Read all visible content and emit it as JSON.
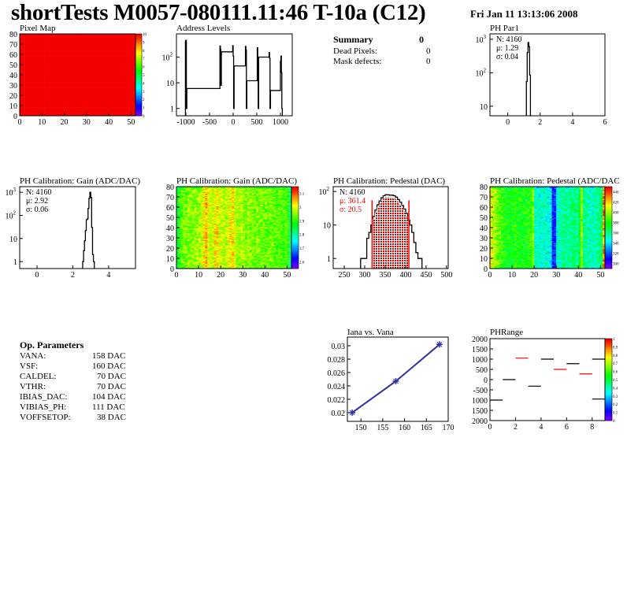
{
  "header": {
    "title": "shortTests M0057-080111.11:46 T-10a (C12)",
    "date": "Fri Jan 11 13:13:06 2008"
  },
  "summary": {
    "title": "Summary",
    "total": "0",
    "rows": [
      {
        "label": "Dead Pixels:",
        "value": "0"
      },
      {
        "label": "Mask defects:",
        "value": "0"
      }
    ]
  },
  "op_parameters": {
    "title": "Op. Parameters",
    "rows": [
      {
        "label": "VANA:",
        "value": "158 DAC"
      },
      {
        "label": "VSF:",
        "value": "160 DAC"
      },
      {
        "label": "CALDEL:",
        "value": "70 DAC"
      },
      {
        "label": "VTHR:",
        "value": "70 DAC"
      },
      {
        "label": "IBIAS_DAC:",
        "value": "104 DAC"
      },
      {
        "label": "VIBIAS_PH:",
        "value": "111 DAC"
      },
      {
        "label": "VOFFSETOP:",
        "value": "38 DAC"
      }
    ]
  },
  "chart_data": [
    {
      "id": "pixel_map",
      "type": "heatmap",
      "title": "Pixel Map",
      "xlim": [
        0,
        52
      ],
      "ylim": [
        0,
        80
      ],
      "zlim": [
        0,
        10
      ],
      "xticks": [
        "0",
        "10",
        "20",
        "30",
        "40",
        "50"
      ],
      "yticks": [
        "0",
        "10",
        "20",
        "30",
        "40",
        "50",
        "60",
        "70",
        "80"
      ],
      "zticks": [
        "0",
        "1",
        "2",
        "3",
        "4",
        "5",
        "6",
        "7",
        "8",
        "9",
        "10"
      ],
      "uniform_value": 10
    },
    {
      "id": "address_levels",
      "type": "bar",
      "title": "Address Levels",
      "xlim": [
        -1200,
        1250
      ],
      "ylim": [
        0.52,
        800
      ],
      "log_y": true,
      "xticks": [
        "-1000",
        "-500",
        "0",
        "500",
        "1000"
      ],
      "yticks": [
        "1",
        "10",
        "10²"
      ],
      "bin_width": 10,
      "bins": [
        [
          -1010,
          420
        ],
        [
          -1000,
          450
        ],
        [
          -990,
          1
        ],
        [
          -290,
          6
        ],
        [
          -280,
          270
        ],
        [
          -270,
          200
        ],
        [
          -260,
          8
        ],
        [
          -20,
          160
        ],
        [
          -10,
          280
        ],
        [
          0,
          110
        ],
        [
          10,
          1
        ],
        [
          250,
          45
        ],
        [
          260,
          260
        ],
        [
          270,
          190
        ],
        [
          280,
          1
        ],
        [
          500,
          12
        ],
        [
          510,
          230
        ],
        [
          520,
          90
        ],
        [
          530,
          1
        ],
        [
          750,
          100
        ],
        [
          760,
          150
        ],
        [
          770,
          90
        ],
        [
          780,
          1
        ],
        [
          990,
          5
        ],
        [
          1000,
          70
        ],
        [
          1010,
          110
        ],
        [
          1020,
          25
        ],
        [
          1030,
          1
        ]
      ]
    },
    {
      "id": "ph_par1",
      "type": "bar",
      "title": "PH Par1",
      "xlim": [
        -1.1,
        6
      ],
      "ylim": [
        5.2,
        1450
      ],
      "log_y": true,
      "xticks": [
        "0",
        "2",
        "4",
        "6"
      ],
      "yticks": [
        "10",
        "10²",
        "10³"
      ],
      "stats": {
        "n": "N: 4160",
        "mean": "μ: 1.29",
        "sigma": "σ: 0.04"
      },
      "bin_width": 0.05,
      "bins": [
        [
          1.15,
          55
        ],
        [
          1.2,
          400
        ],
        [
          1.25,
          800
        ],
        [
          1.3,
          600
        ],
        [
          1.35,
          85
        ],
        [
          1.4,
          5
        ]
      ]
    },
    {
      "id": "gain_hist",
      "type": "bar",
      "title": "PH Calibration: Gain (ADC/DAC)",
      "xlim": [
        -0.97,
        5.5
      ],
      "ylim": [
        0.5,
        1750
      ],
      "log_y": true,
      "xticks": [
        "0",
        "2",
        "4"
      ],
      "yticks": [
        "1",
        "10",
        "10²",
        "10³"
      ],
      "stats": {
        "n": "N: 4160",
        "mean": "μ: 2.92",
        "sigma": "σ: 0.06"
      },
      "bin_width": 0.05,
      "bins": [
        [
          2.55,
          1
        ],
        [
          2.6,
          3
        ],
        [
          2.65,
          8
        ],
        [
          2.7,
          22
        ],
        [
          2.75,
          65
        ],
        [
          2.8,
          70
        ],
        [
          2.85,
          200
        ],
        [
          2.9,
          550
        ],
        [
          2.95,
          1000
        ],
        [
          3.0,
          600
        ],
        [
          3.05,
          30
        ],
        [
          3.1,
          2
        ],
        [
          3.15,
          1
        ]
      ]
    },
    {
      "id": "gain_map",
      "type": "heatmap",
      "title": "PH Calibration: Gain (ADC/DAC)",
      "xlim": [
        0,
        52
      ],
      "ylim": [
        0,
        80
      ],
      "zlim": [
        2.55,
        3.15
      ],
      "xticks": [
        "0",
        "10",
        "20",
        "30",
        "40",
        "50"
      ],
      "yticks": [
        "0",
        "10",
        "20",
        "30",
        "40",
        "50",
        "60",
        "70",
        "80"
      ],
      "zticks": [
        "2.6",
        "2.7",
        "2.8",
        "2.9",
        "3",
        "3.1"
      ],
      "column_levels": [
        2.86,
        2.9,
        2.93,
        2.94,
        2.94,
        2.95,
        2.95,
        2.95,
        2.96,
        2.96,
        2.97,
        2.99,
        3.02,
        3.05,
        3.0,
        2.98,
        2.99,
        3.02,
        3.03,
        2.99,
        2.98,
        2.97,
        2.98,
        3.0,
        3.02,
        3.03,
        2.99,
        2.97,
        2.96,
        2.97,
        2.96,
        2.95,
        2.96,
        2.95,
        2.95,
        2.94,
        2.95,
        2.94,
        2.95,
        2.94,
        2.94,
        2.93,
        2.94,
        2.93,
        2.93,
        2.92,
        2.93,
        2.92,
        2.92,
        2.92,
        2.91,
        2.82
      ]
    },
    {
      "id": "pedestal_hist",
      "type": "bar",
      "title": "PH Calibration: Pedestal (DAC)",
      "xlim": [
        223,
        504
      ],
      "ylim": [
        0.5,
        140
      ],
      "log_y": true,
      "xticks": [
        "250",
        "300",
        "350",
        "400",
        "450",
        "500"
      ],
      "yticks": [
        "1",
        "10",
        "10²"
      ],
      "stats": {
        "n": "N: 4160",
        "mean": "μ: 361.4",
        "sigma": "σ: 20.5"
      },
      "fit_range": [
        318,
        408
      ],
      "bin_width": 5,
      "bins": [
        [
          290,
          1
        ],
        [
          295,
          1
        ],
        [
          300,
          1
        ],
        [
          305,
          4
        ],
        [
          310,
          6
        ],
        [
          315,
          10
        ],
        [
          320,
          18
        ],
        [
          325,
          28
        ],
        [
          330,
          40
        ],
        [
          335,
          52
        ],
        [
          340,
          65
        ],
        [
          345,
          75
        ],
        [
          350,
          80
        ],
        [
          355,
          80
        ],
        [
          360,
          78
        ],
        [
          365,
          78
        ],
        [
          370,
          75
        ],
        [
          375,
          68
        ],
        [
          380,
          58
        ],
        [
          385,
          48
        ],
        [
          390,
          38
        ],
        [
          395,
          30
        ],
        [
          400,
          22
        ],
        [
          405,
          14
        ],
        [
          410,
          10
        ],
        [
          415,
          6
        ],
        [
          420,
          3
        ],
        [
          425,
          1.5
        ],
        [
          430,
          1
        ],
        [
          435,
          1
        ]
      ]
    },
    {
      "id": "pedestal_map",
      "type": "heatmap",
      "title": "PH Calibration: Pedestal (ADC/DAC",
      "xlim": [
        0,
        52
      ],
      "ylim": [
        0,
        80
      ],
      "zlim": [
        290,
        450
      ],
      "xticks": [
        "0",
        "10",
        "20",
        "30",
        "40",
        "50"
      ],
      "yticks": [
        "0",
        "10",
        "20",
        "30",
        "40",
        "50",
        "60",
        "70",
        "80"
      ],
      "zticks": [
        "300",
        "320",
        "340",
        "360",
        "380",
        "400",
        "420",
        "440"
      ],
      "column_levels": [
        410,
        405,
        400,
        395,
        390,
        385,
        380,
        378,
        380,
        375,
        380,
        382,
        378,
        380,
        376,
        378,
        380,
        382,
        385,
        395,
        350,
        352,
        350,
        348,
        352,
        350,
        348,
        345,
        310,
        315,
        350,
        352,
        355,
        360,
        358,
        355,
        360,
        362,
        365,
        360,
        370,
        400,
        360,
        358,
        355,
        352,
        350,
        355,
        358,
        360,
        365,
        430
      ]
    },
    {
      "id": "iana_vs_vana",
      "type": "line",
      "title": "Iana vs. Vana",
      "xlim": [
        146.9,
        170
      ],
      "ylim": [
        0.0187,
        0.0313
      ],
      "xticks": [
        "150",
        "155",
        "160",
        "165",
        "170"
      ],
      "yticks": [
        "0.02",
        "0.022",
        "0.024",
        "0.026",
        "0.028",
        "0.03"
      ],
      "x": [
        148,
        158,
        168
      ],
      "y": [
        0.02,
        0.0247,
        0.0302
      ],
      "color": "#3030a0"
    },
    {
      "id": "ph_range",
      "type": "heatmap",
      "title": "PHRange",
      "xlim": [
        0,
        9
      ],
      "ylim": [
        -2000,
        2000
      ],
      "zlim": [
        0,
        1
      ],
      "xticks": [
        "0",
        "2",
        "4",
        "6",
        "8"
      ],
      "yticks": [
        "2000",
        "1500",
        "1000",
        "500",
        "0",
        "-500",
        "1000",
        "1500",
        "2000"
      ],
      "zticks": [
        "0",
        "0.1",
        "0.2",
        "0.3",
        "0.4",
        "0.5",
        "0.6",
        "0.7",
        "0.8",
        "0.9",
        "1"
      ],
      "segments": [
        {
          "bin": 0,
          "value": -1000,
          "color": "#000000"
        },
        {
          "bin": 1,
          "value": 0,
          "color": "#000000"
        },
        {
          "bin": 2,
          "value": 1050,
          "color": "#ff0000"
        },
        {
          "bin": 3,
          "value": -320,
          "color": "#000000"
        },
        {
          "bin": 4,
          "value": 1000,
          "color": "#000000"
        },
        {
          "bin": 5,
          "value": 500,
          "color": "#ff0000"
        },
        {
          "bin": 6,
          "value": 780,
          "color": "#000000"
        },
        {
          "bin": 7,
          "value": 280,
          "color": "#ff0000"
        },
        {
          "bin": 8,
          "value": 1000,
          "color": "#000000"
        },
        {
          "bin": 8,
          "value": -950,
          "color": "#000000"
        }
      ]
    }
  ]
}
